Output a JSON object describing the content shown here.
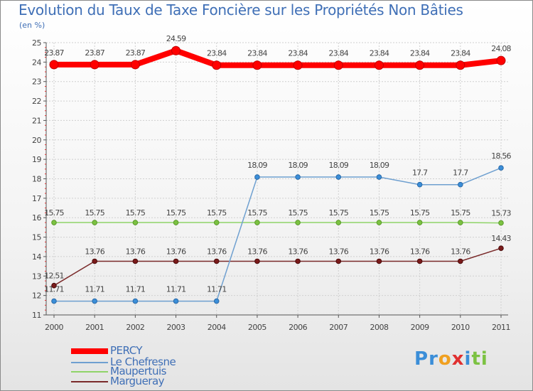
{
  "chart_data": {
    "type": "line",
    "title": "Evolution du Taux de Taxe Foncière sur les Propriétés Non Bâties",
    "ylabel": "(en %)",
    "xlabel": "",
    "x": [
      "2000",
      "2001",
      "2002",
      "2003",
      "2004",
      "2005",
      "2006",
      "2007",
      "2008",
      "2009",
      "2010",
      "2011"
    ],
    "ylim": [
      11,
      25
    ],
    "yticks": [
      "11",
      "12",
      "13",
      "14",
      "15",
      "16",
      "17",
      "18",
      "19",
      "20",
      "21",
      "22",
      "23",
      "24",
      "25"
    ],
    "series": [
      {
        "name": "PERCY",
        "color": "#ff0000",
        "values": [
          23.87,
          23.87,
          23.87,
          24.59,
          23.84,
          23.84,
          23.84,
          23.84,
          23.84,
          23.84,
          23.84,
          24.08
        ],
        "labels": [
          "23.87",
          "23.87",
          "23.87",
          "24.59",
          "23.84",
          "23.84",
          "23.84",
          "23.84",
          "23.84",
          "23.84",
          "23.84",
          "24.08"
        ]
      },
      {
        "name": "Le Chefresne",
        "color": "#6fa0d0",
        "values": [
          11.71,
          11.71,
          11.71,
          11.71,
          11.71,
          18.09,
          18.09,
          18.09,
          18.09,
          17.7,
          17.7,
          18.56
        ],
        "labels": [
          "11.71",
          "11.71",
          "11.71",
          "11.71",
          "11.71",
          "18.09",
          "18.09",
          "18.09",
          "18.09",
          "17.7",
          "17.7",
          "18.56"
        ]
      },
      {
        "name": "Maupertuis",
        "color": "#8fd468",
        "values": [
          15.75,
          15.75,
          15.75,
          15.75,
          15.75,
          15.75,
          15.75,
          15.75,
          15.75,
          15.75,
          15.75,
          15.73
        ],
        "labels": [
          "15.75",
          "15.75",
          "15.75",
          "15.75",
          "15.75",
          "15.75",
          "15.75",
          "15.75",
          "15.75",
          "15.75",
          "15.75",
          "15.73"
        ]
      },
      {
        "name": "Margueray",
        "color": "#7a2a2a",
        "values": [
          12.51,
          13.76,
          13.76,
          13.76,
          13.76,
          13.76,
          13.76,
          13.76,
          13.76,
          13.76,
          13.76,
          14.43
        ],
        "labels": [
          "12.51",
          "13.76",
          "13.76",
          "13.76",
          "13.76",
          "13.76",
          "13.76",
          "13.76",
          "13.76",
          "13.76",
          "13.76",
          "14.43"
        ]
      }
    ],
    "legend_position": "bottom-left",
    "grid": true
  },
  "logo": {
    "letters": [
      "P",
      "r",
      "o",
      "x",
      "i",
      "t",
      "i"
    ],
    "colors": [
      "#3b8ed8",
      "#3b8ed8",
      "#f0a020",
      "#e03030",
      "#3b8ed8",
      "#7cc242",
      "#7cc242"
    ]
  }
}
